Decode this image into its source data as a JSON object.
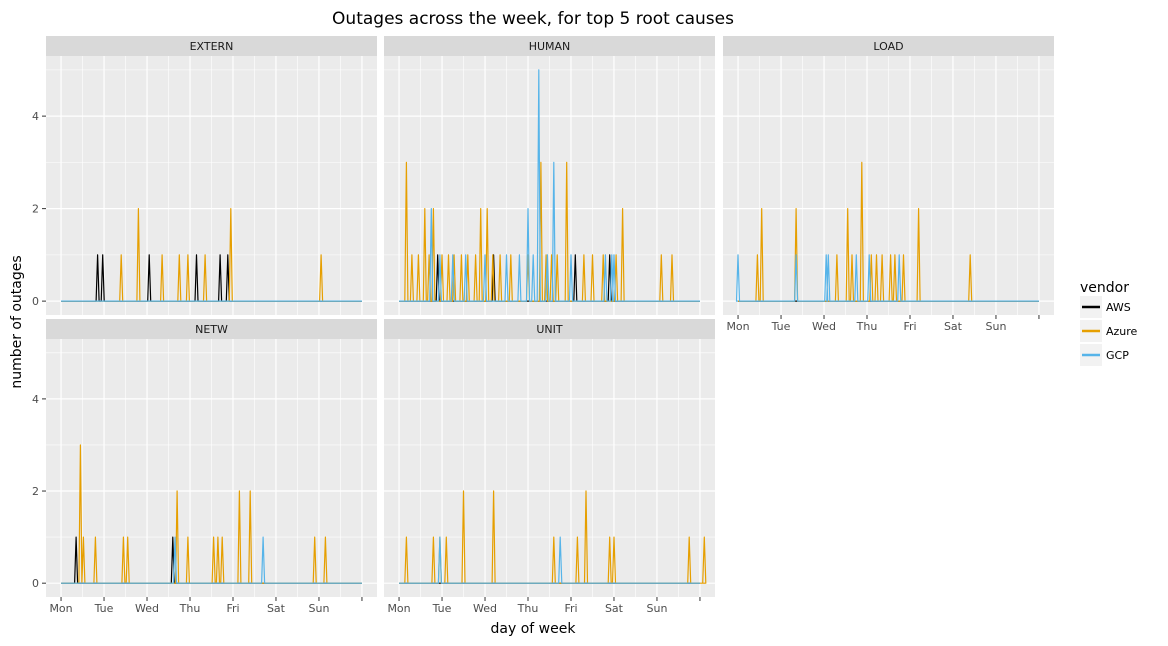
{
  "chart_data": {
    "type": "line",
    "title": "Outages across the week, for top 5 root causes",
    "xlabel": "day of week",
    "ylabel": "number of outages",
    "x_ticks": [
      "Mon",
      "Tue",
      "Wed",
      "Thu",
      "Fri",
      "Sat",
      "Sun"
    ],
    "y_ticks": [
      "0",
      "2",
      "4"
    ],
    "ylim": [
      -0.3,
      5.3
    ],
    "legend": {
      "title": "vendor",
      "position": "right",
      "entries": [
        {
          "name": "AWS",
          "color": "#000000"
        },
        {
          "name": "Azure",
          "color": "#E69F00"
        },
        {
          "name": "GCP",
          "color": "#56B4E9"
        }
      ]
    },
    "facets": [
      {
        "label": "EXTERN",
        "series": [
          {
            "name": "AWS",
            "color": "#000000",
            "spikes": [
              [
                0.85,
                1
              ],
              [
                0.97,
                1
              ],
              [
                2.05,
                1
              ],
              [
                3.15,
                1
              ],
              [
                3.7,
                1
              ],
              [
                3.88,
                1
              ]
            ]
          },
          {
            "name": "Azure",
            "color": "#E69F00",
            "spikes": [
              [
                1.4,
                1
              ],
              [
                1.8,
                2
              ],
              [
                2.35,
                1
              ],
              [
                2.75,
                1
              ],
              [
                2.95,
                1
              ],
              [
                3.35,
                1
              ],
              [
                3.95,
                2
              ],
              [
                6.05,
                1
              ]
            ]
          },
          {
            "name": "GCP",
            "color": "#56B4E9",
            "spikes": []
          }
        ]
      },
      {
        "label": "HUMAN",
        "series": [
          {
            "name": "AWS",
            "color": "#000000",
            "spikes": [
              [
                0.9,
                1
              ],
              [
                2.2,
                1
              ],
              [
                4.1,
                1
              ],
              [
                4.9,
                1
              ]
            ]
          },
          {
            "name": "Azure",
            "color": "#E69F00",
            "spikes": [
              [
                0.17,
                3
              ],
              [
                0.3,
                1
              ],
              [
                0.45,
                1
              ],
              [
                0.6,
                2
              ],
              [
                0.7,
                1
              ],
              [
                0.8,
                2
              ],
              [
                1.0,
                1
              ],
              [
                1.15,
                1
              ],
              [
                1.28,
                1
              ],
              [
                1.45,
                1
              ],
              [
                1.6,
                1
              ],
              [
                1.78,
                1
              ],
              [
                1.9,
                2
              ],
              [
                2.05,
                2
              ],
              [
                2.18,
                1
              ],
              [
                2.35,
                1
              ],
              [
                2.6,
                1
              ],
              [
                3.0,
                1
              ],
              [
                3.3,
                3
              ],
              [
                3.42,
                1
              ],
              [
                3.55,
                1
              ],
              [
                3.68,
                1
              ],
              [
                3.9,
                3
              ],
              [
                4.3,
                1
              ],
              [
                4.5,
                1
              ],
              [
                4.75,
                1
              ],
              [
                5.05,
                1
              ],
              [
                5.2,
                2
              ],
              [
                6.1,
                1
              ],
              [
                6.35,
                1
              ]
            ]
          },
          {
            "name": "GCP",
            "color": "#56B4E9",
            "spikes": [
              [
                0.75,
                2
              ],
              [
                0.95,
                1
              ],
              [
                1.25,
                1
              ],
              [
                1.55,
                1
              ],
              [
                2.0,
                1
              ],
              [
                2.5,
                1
              ],
              [
                2.8,
                1
              ],
              [
                3.0,
                2
              ],
              [
                3.12,
                1
              ],
              [
                3.25,
                5
              ],
              [
                3.45,
                1
              ],
              [
                3.6,
                3
              ],
              [
                4.0,
                1
              ],
              [
                4.8,
                1
              ],
              [
                4.95,
                1
              ],
              [
                5.0,
                1
              ]
            ]
          }
        ]
      },
      {
        "label": "LOAD",
        "series": [
          {
            "name": "AWS",
            "color": "#000000",
            "spikes": []
          },
          {
            "name": "Azure",
            "color": "#E69F00",
            "spikes": [
              [
                0.45,
                1
              ],
              [
                0.55,
                2
              ],
              [
                1.35,
                2
              ],
              [
                2.3,
                1
              ],
              [
                2.55,
                2
              ],
              [
                2.65,
                1
              ],
              [
                2.88,
                3
              ],
              [
                3.1,
                1
              ],
              [
                3.22,
                1
              ],
              [
                3.35,
                1
              ],
              [
                3.55,
                1
              ],
              [
                3.65,
                1
              ],
              [
                3.85,
                1
              ],
              [
                4.2,
                2
              ],
              [
                5.4,
                1
              ]
            ]
          },
          {
            "name": "GCP",
            "color": "#56B4E9",
            "spikes": [
              [
                0.0,
                1
              ],
              [
                1.35,
                1
              ],
              [
                2.05,
                1
              ],
              [
                2.1,
                1
              ],
              [
                2.75,
                1
              ],
              [
                3.05,
                1
              ],
              [
                3.75,
                1
              ]
            ]
          }
        ]
      },
      {
        "label": "NETW",
        "series": [
          {
            "name": "AWS",
            "color": "#000000",
            "spikes": [
              [
                0.35,
                1
              ],
              [
                2.6,
                1
              ]
            ]
          },
          {
            "name": "Azure",
            "color": "#E69F00",
            "spikes": [
              [
                0.45,
                3
              ],
              [
                0.52,
                1
              ],
              [
                0.8,
                1
              ],
              [
                1.45,
                1
              ],
              [
                1.55,
                1
              ],
              [
                2.7,
                2
              ],
              [
                2.95,
                1
              ],
              [
                3.55,
                1
              ],
              [
                3.65,
                1
              ],
              [
                3.75,
                1
              ],
              [
                4.15,
                2
              ],
              [
                4.4,
                2
              ],
              [
                5.9,
                1
              ],
              [
                6.15,
                1
              ]
            ]
          },
          {
            "name": "GCP",
            "color": "#56B4E9",
            "spikes": [
              [
                2.65,
                1
              ],
              [
                4.7,
                1
              ]
            ]
          }
        ]
      },
      {
        "label": "UNIT",
        "series": [
          {
            "name": "AWS",
            "color": "#000000",
            "spikes": []
          },
          {
            "name": "Azure",
            "color": "#E69F00",
            "spikes": [
              [
                0.17,
                1
              ],
              [
                0.8,
                1
              ],
              [
                0.95,
                1
              ],
              [
                1.1,
                1
              ],
              [
                1.5,
                2
              ],
              [
                2.2,
                2
              ],
              [
                3.6,
                1
              ],
              [
                4.15,
                1
              ],
              [
                4.35,
                2
              ],
              [
                4.9,
                1
              ],
              [
                5.0,
                1
              ],
              [
                6.75,
                1
              ],
              [
                7.1,
                1
              ]
            ]
          },
          {
            "name": "GCP",
            "color": "#56B4E9",
            "spikes": [
              [
                0.95,
                1
              ],
              [
                3.75,
                1
              ]
            ]
          }
        ]
      }
    ]
  }
}
